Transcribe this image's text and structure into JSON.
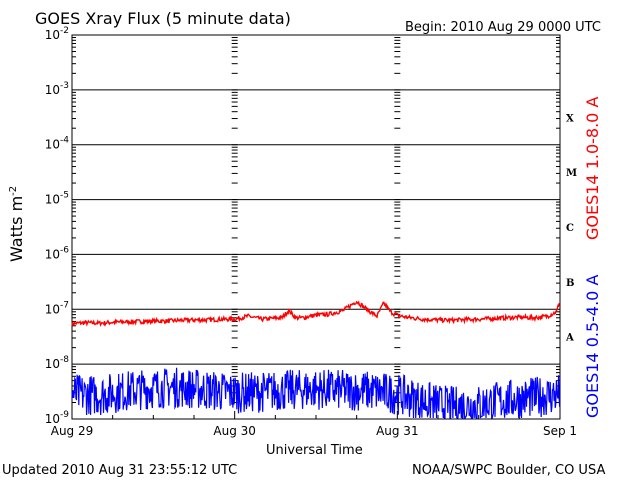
{
  "header": {
    "title": "GOES Xray Flux (5 minute data)",
    "begin": "Begin:  2010 Aug 29 0000 UTC"
  },
  "footer": {
    "updated": "Updated 2010 Aug 31 23:55:12 UTC",
    "credit": "NOAA/SWPC Boulder, CO USA"
  },
  "chart_data": {
    "type": "line",
    "title": "GOES Xray Flux (5 minute data)",
    "xlabel": "Universal Time",
    "ylabel": "Watts m",
    "ylabel_sup": "-2",
    "yscale": "log",
    "ylim": [
      1e-09,
      0.01
    ],
    "xlim": [
      "2010-08-29 00:00",
      "2010-09-01 00:00"
    ],
    "x_tick_labels": [
      "Aug 29",
      "Aug 30",
      "Aug 31",
      "Sep 1"
    ],
    "y_ticks": [
      {
        "base": "10",
        "exp": "-2"
      },
      {
        "base": "10",
        "exp": "-3"
      },
      {
        "base": "10",
        "exp": "-4"
      },
      {
        "base": "10",
        "exp": "-5"
      },
      {
        "base": "10",
        "exp": "-6"
      },
      {
        "base": "10",
        "exp": "-7"
      },
      {
        "base": "10",
        "exp": "-8"
      },
      {
        "base": "10",
        "exp": "-9"
      }
    ],
    "flare_classes": [
      "X",
      "M",
      "C",
      "B",
      "A"
    ],
    "grid": true,
    "series": [
      {
        "name": "GOES14 1.0-8.0 A",
        "color": "#ff0000",
        "x_hours": [
          0,
          2,
          4,
          6,
          8,
          10,
          12,
          14,
          16,
          18,
          20,
          22,
          24,
          26,
          28,
          30,
          31,
          32,
          33,
          34,
          36,
          38,
          40,
          42,
          44,
          45,
          46,
          47,
          48,
          49,
          50,
          51,
          52,
          53,
          54,
          56,
          58,
          60,
          62,
          64,
          66,
          68,
          70,
          72,
          71.5
        ],
        "y": [
          5.5e-08,
          5.7e-08,
          5.6e-08,
          5.8e-08,
          5.9e-08,
          6e-08,
          6.1e-08,
          6.1e-08,
          6.3e-08,
          6.4e-08,
          6.4e-08,
          6.6e-08,
          6.6e-08,
          7.5e-08,
          6.6e-08,
          6.9e-08,
          7.1e-08,
          9.5e-08,
          7e-08,
          7e-08,
          7.8e-08,
          8.2e-08,
          9.5e-08,
          1.4e-07,
          9e-08,
          7.5e-08,
          1.3e-07,
          9e-08,
          7.8e-08,
          7.3e-08,
          7e-08,
          6.8e-08,
          6.6e-08,
          6.5e-08,
          6.4e-08,
          6.3e-08,
          6.5e-08,
          6.6e-08,
          6.8e-08,
          7e-08,
          7.2e-08,
          7e-08,
          7.4e-08,
          1.5e-07,
          9e-08
        ]
      },
      {
        "name": "GOES14 0.5-4.0 A",
        "color": "#0000ff",
        "x_hours": [
          0,
          4,
          8,
          12,
          16,
          20,
          24,
          28,
          32,
          36,
          40,
          44,
          48,
          52,
          56,
          60,
          64,
          68,
          72
        ],
        "y": [
          2.2e-09,
          2.1e-09,
          2.5e-09,
          2.8e-09,
          2.9e-09,
          2.6e-09,
          2.3e-09,
          2.4e-09,
          2.6e-09,
          2.7e-09,
          2.6e-09,
          2.5e-09,
          2.2e-09,
          1.6e-09,
          1.3e-09,
          1.4e-09,
          1.7e-09,
          1.9e-09,
          2.2e-09
        ]
      }
    ]
  }
}
